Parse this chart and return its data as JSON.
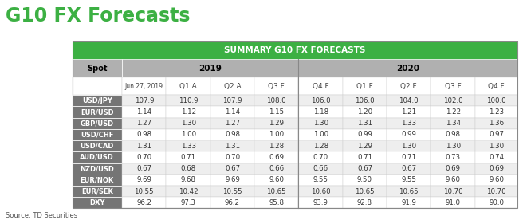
{
  "title": "G10 FX Forecasts",
  "source": "Source: TD Securities",
  "header_main": "SUMMARY G10 FX FORECASTS",
  "subheader_labels": [
    "Jun 27, 2019",
    "Q1 A",
    "Q2 A",
    "Q3 F",
    "Q4 F",
    "Q1 F",
    "Q2 F",
    "Q3 F",
    "Q4 F"
  ],
  "row_labels": [
    "USD/JPY",
    "EUR/USD",
    "GBP/USD",
    "USD/CHF",
    "USD/CAD",
    "AUD/USD",
    "NZD/USD",
    "EUR/NOK",
    "EUR/SEK",
    "DXY"
  ],
  "rows": [
    [
      "107.9",
      "110.9",
      "107.9",
      "108.0",
      "106.0",
      "106.0",
      "104.0",
      "102.0",
      "100.0"
    ],
    [
      "1.14",
      "1.12",
      "1.14",
      "1.15",
      "1.18",
      "1.20",
      "1.21",
      "1.22",
      "1.23"
    ],
    [
      "1.27",
      "1.30",
      "1.27",
      "1.29",
      "1.30",
      "1.31",
      "1.33",
      "1.34",
      "1.36"
    ],
    [
      "0.98",
      "1.00",
      "0.98",
      "1.00",
      "1.00",
      "0.99",
      "0.99",
      "0.98",
      "0.97"
    ],
    [
      "1.31",
      "1.33",
      "1.31",
      "1.28",
      "1.28",
      "1.29",
      "1.30",
      "1.30",
      "1.30"
    ],
    [
      "0.70",
      "0.71",
      "0.70",
      "0.69",
      "0.70",
      "0.71",
      "0.71",
      "0.73",
      "0.74"
    ],
    [
      "0.67",
      "0.68",
      "0.67",
      "0.66",
      "0.66",
      "0.67",
      "0.67",
      "0.69",
      "0.69"
    ],
    [
      "9.69",
      "9.68",
      "9.69",
      "9.60",
      "9.55",
      "9.50",
      "9.55",
      "9.60",
      "9.60"
    ],
    [
      "10.55",
      "10.42",
      "10.55",
      "10.65",
      "10.60",
      "10.65",
      "10.65",
      "10.70",
      "10.70"
    ],
    [
      "96.2",
      "97.3",
      "96.2",
      "95.8",
      "93.9",
      "92.8",
      "91.9",
      "91.0",
      "90.0"
    ]
  ],
  "green_header_bg": "#3cb043",
  "year_header_bg": "#b0b0b0",
  "row_label_bg": "#757575",
  "row_even_bg": "#eeeeee",
  "row_odd_bg": "#ffffff",
  "row_text_color": "#333333",
  "title_color": "#3cb043"
}
